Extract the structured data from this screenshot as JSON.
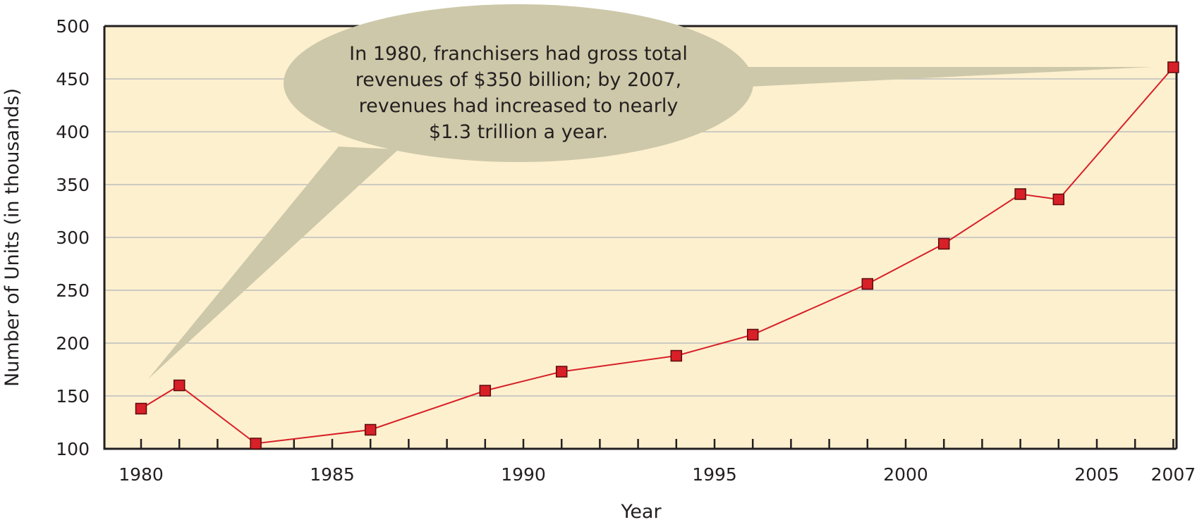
{
  "chart_data": {
    "type": "line",
    "xlabel": "Year",
    "ylabel": "Number of Units (in thousands)",
    "xlim": [
      1979,
      2007.1
    ],
    "ylim": [
      100,
      500
    ],
    "x_ticks": [
      1980,
      1985,
      1990,
      1995,
      2000,
      2005,
      2007
    ],
    "x_tick_labels": [
      "1980",
      "1985",
      "1990",
      "1995",
      "2000",
      "2005",
      "2007"
    ],
    "y_ticks": [
      100,
      150,
      200,
      250,
      300,
      350,
      400,
      450,
      500
    ],
    "y_tick_labels": [
      "100",
      "150",
      "200",
      "250",
      "300",
      "350",
      "400",
      "450",
      "500"
    ],
    "grid": true,
    "colors": {
      "plot_background": "#fdf0cf",
      "gridline": "#bdbdbd",
      "axis": "#231f20",
      "line": "#d72027",
      "marker_fill": "#d72027",
      "marker_stroke": "#5c0b0d",
      "callout_fill": "#cdc8a9"
    },
    "series": [
      {
        "x": [
          1980,
          1981,
          1983,
          1986,
          1989,
          1991,
          1994,
          1996,
          1999,
          2001,
          2003,
          2004,
          2007
        ],
        "values": [
          138,
          160,
          105,
          118,
          155,
          173,
          188,
          208,
          256,
          294,
          341,
          336,
          461
        ]
      }
    ],
    "annotation": {
      "lines": [
        "In 1980, franchisers had gross total",
        "revenues of $350 billion; by 2007,",
        "revenues had increased to nearly",
        "$1.3 trillion a year."
      ]
    }
  }
}
